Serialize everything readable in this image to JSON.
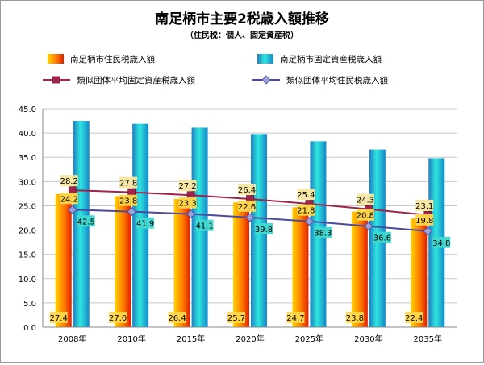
{
  "colors": {
    "resident_bar": "#f03a00",
    "resident_bar_light": "#ffd400",
    "property_bar": "#1aa7cf",
    "property_bar_light": "#2fe6e0",
    "avg_property_line": "#a0244a",
    "avg_resident_line": "#4a4aa0",
    "grid": "#c8c8c8"
  },
  "chart_data": {
    "type": "bar",
    "title": "南足柄市主要2税歳入額推移",
    "subtitle": "（住民税：個人、固定資産税）",
    "xlabel": "",
    "ylabel": "",
    "ylim": [
      0,
      45
    ],
    "yticks": [
      "0.0",
      "5.0",
      "10.0",
      "15.0",
      "20.0",
      "25.0",
      "30.0",
      "35.0",
      "40.0",
      "45.0"
    ],
    "grid": true,
    "legend_position": "top",
    "categories": [
      "2008年",
      "2010年",
      "2015年",
      "2020年",
      "2025年",
      "2030年",
      "2035年"
    ],
    "series": [
      {
        "name": "南足柄市住民税歳入額",
        "kind": "bar",
        "values": [
          27.4,
          27.0,
          26.4,
          25.7,
          24.7,
          23.8,
          22.4
        ]
      },
      {
        "name": "南足柄市固定資産税歳入額",
        "kind": "bar",
        "values": [
          42.5,
          41.9,
          41.1,
          39.8,
          38.3,
          36.6,
          34.8
        ]
      },
      {
        "name": "類似団体平均固定資産税歳入額",
        "kind": "line",
        "values": [
          28.2,
          27.8,
          27.2,
          26.4,
          25.4,
          24.3,
          23.1
        ]
      },
      {
        "name": "類似団体平均住民税歳入額",
        "kind": "line",
        "values": [
          24.2,
          23.8,
          23.3,
          22.6,
          21.8,
          20.8,
          19.8
        ]
      }
    ]
  }
}
